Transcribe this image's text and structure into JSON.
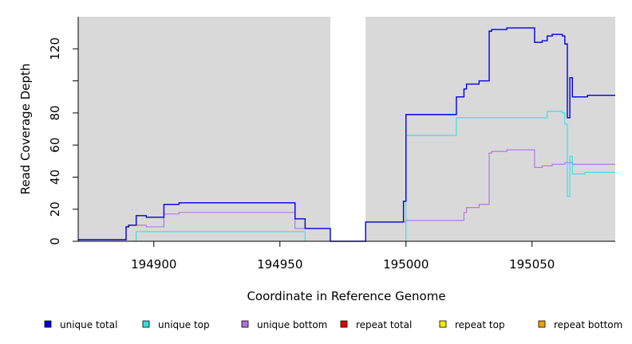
{
  "chart_data": {
    "type": "line",
    "title": "",
    "xlabel": "Coordinate in Reference Genome",
    "ylabel": "Read Coverage Depth",
    "xlim": [
      194870,
      195083
    ],
    "ylim": [
      0,
      140
    ],
    "xticks": [
      194900,
      194950,
      195000,
      195050
    ],
    "xtick_labels": [
      "194900",
      "194950",
      "195000",
      "195050"
    ],
    "yticks": [
      0,
      20,
      40,
      60,
      80,
      100,
      120
    ],
    "ytick_labels": [
      "0",
      "20",
      "40",
      "60",
      "80",
      "",
      "120"
    ],
    "shaded_regions": [
      [
        194870,
        194970
      ],
      [
        194984,
        195083
      ]
    ],
    "series": [
      {
        "name": "unique total",
        "color": "#0000dd",
        "points": [
          [
            194870,
            1
          ],
          [
            194889,
            1
          ],
          [
            194889,
            9
          ],
          [
            194890,
            9
          ],
          [
            194890,
            10
          ],
          [
            194893,
            10
          ],
          [
            194893,
            16
          ],
          [
            194897,
            16
          ],
          [
            194897,
            15
          ],
          [
            194904,
            15
          ],
          [
            194904,
            23
          ],
          [
            194910,
            23
          ],
          [
            194910,
            24
          ],
          [
            194956,
            24
          ],
          [
            194956,
            14
          ],
          [
            194960,
            14
          ],
          [
            194960,
            8
          ],
          [
            194970,
            8
          ],
          [
            194970,
            0
          ],
          [
            194984,
            0
          ],
          [
            194984,
            12
          ],
          [
            194999,
            12
          ],
          [
            194999,
            25
          ],
          [
            195000,
            25
          ],
          [
            195000,
            79
          ],
          [
            195020,
            79
          ],
          [
            195020,
            90
          ],
          [
            195023,
            90
          ],
          [
            195023,
            95
          ],
          [
            195024,
            95
          ],
          [
            195024,
            98
          ],
          [
            195029,
            98
          ],
          [
            195029,
            100
          ],
          [
            195033,
            100
          ],
          [
            195033,
            131
          ],
          [
            195034,
            131
          ],
          [
            195034,
            132
          ],
          [
            195040,
            132
          ],
          [
            195040,
            133
          ],
          [
            195051,
            133
          ],
          [
            195051,
            124
          ],
          [
            195054,
            124
          ],
          [
            195054,
            125
          ],
          [
            195056,
            125
          ],
          [
            195056,
            128
          ],
          [
            195058,
            128
          ],
          [
            195058,
            129
          ],
          [
            195062,
            129
          ],
          [
            195062,
            128
          ],
          [
            195063,
            128
          ],
          [
            195063,
            123
          ],
          [
            195064,
            123
          ],
          [
            195064,
            77
          ],
          [
            195065,
            77
          ],
          [
            195065,
            102
          ],
          [
            195066,
            102
          ],
          [
            195066,
            90
          ],
          [
            195072,
            90
          ],
          [
            195072,
            91
          ],
          [
            195083,
            91
          ]
        ]
      },
      {
        "name": "unique top",
        "color": "#33e0e0",
        "points": [
          [
            194870,
            0
          ],
          [
            194893,
            0
          ],
          [
            194893,
            6
          ],
          [
            194960,
            6
          ],
          [
            194960,
            0
          ],
          [
            195000,
            0
          ],
          [
            195000,
            66
          ],
          [
            195020,
            66
          ],
          [
            195020,
            77
          ],
          [
            195056,
            77
          ],
          [
            195056,
            81
          ],
          [
            195062,
            81
          ],
          [
            195062,
            80
          ],
          [
            195063,
            80
          ],
          [
            195063,
            73
          ],
          [
            195064,
            73
          ],
          [
            195064,
            28
          ],
          [
            195065,
            28
          ],
          [
            195065,
            53
          ],
          [
            195066,
            53
          ],
          [
            195066,
            42
          ],
          [
            195071,
            42
          ],
          [
            195071,
            43
          ],
          [
            195083,
            43
          ]
        ]
      },
      {
        "name": "unique bottom",
        "color": "#b070e0",
        "points": [
          [
            194870,
            1
          ],
          [
            194889,
            1
          ],
          [
            194889,
            9
          ],
          [
            194890,
            9
          ],
          [
            194890,
            10
          ],
          [
            194897,
            10
          ],
          [
            194897,
            9
          ],
          [
            194904,
            9
          ],
          [
            194904,
            17
          ],
          [
            194910,
            17
          ],
          [
            194910,
            18
          ],
          [
            194956,
            18
          ],
          [
            194956,
            8
          ],
          [
            194960,
            8
          ],
          [
            194960,
            8
          ],
          [
            194970,
            8
          ],
          [
            194970,
            0
          ],
          [
            194984,
            0
          ],
          [
            194984,
            12
          ],
          [
            195000,
            12
          ],
          [
            195000,
            13
          ],
          [
            195023,
            13
          ],
          [
            195023,
            18
          ],
          [
            195024,
            18
          ],
          [
            195024,
            21
          ],
          [
            195029,
            21
          ],
          [
            195029,
            23
          ],
          [
            195033,
            23
          ],
          [
            195033,
            55
          ],
          [
            195034,
            55
          ],
          [
            195034,
            56
          ],
          [
            195040,
            56
          ],
          [
            195040,
            57
          ],
          [
            195051,
            57
          ],
          [
            195051,
            46
          ],
          [
            195054,
            46
          ],
          [
            195054,
            47
          ],
          [
            195058,
            47
          ],
          [
            195058,
            48
          ],
          [
            195063,
            48
          ],
          [
            195063,
            49
          ],
          [
            195066,
            49
          ],
          [
            195066,
            48
          ],
          [
            195083,
            48
          ]
        ]
      },
      {
        "name": "repeat total",
        "color": "#e00000",
        "points": [
          [
            194870,
            0
          ],
          [
            195083,
            0
          ]
        ]
      },
      {
        "name": "repeat top",
        "color": "#eeee00",
        "points": [
          [
            194870,
            0
          ],
          [
            195083,
            0
          ]
        ]
      },
      {
        "name": "repeat bottom",
        "color": "#f0a000",
        "points": [
          [
            194870,
            0
          ],
          [
            195083,
            0
          ]
        ]
      }
    ],
    "legend_position": "bottom"
  }
}
